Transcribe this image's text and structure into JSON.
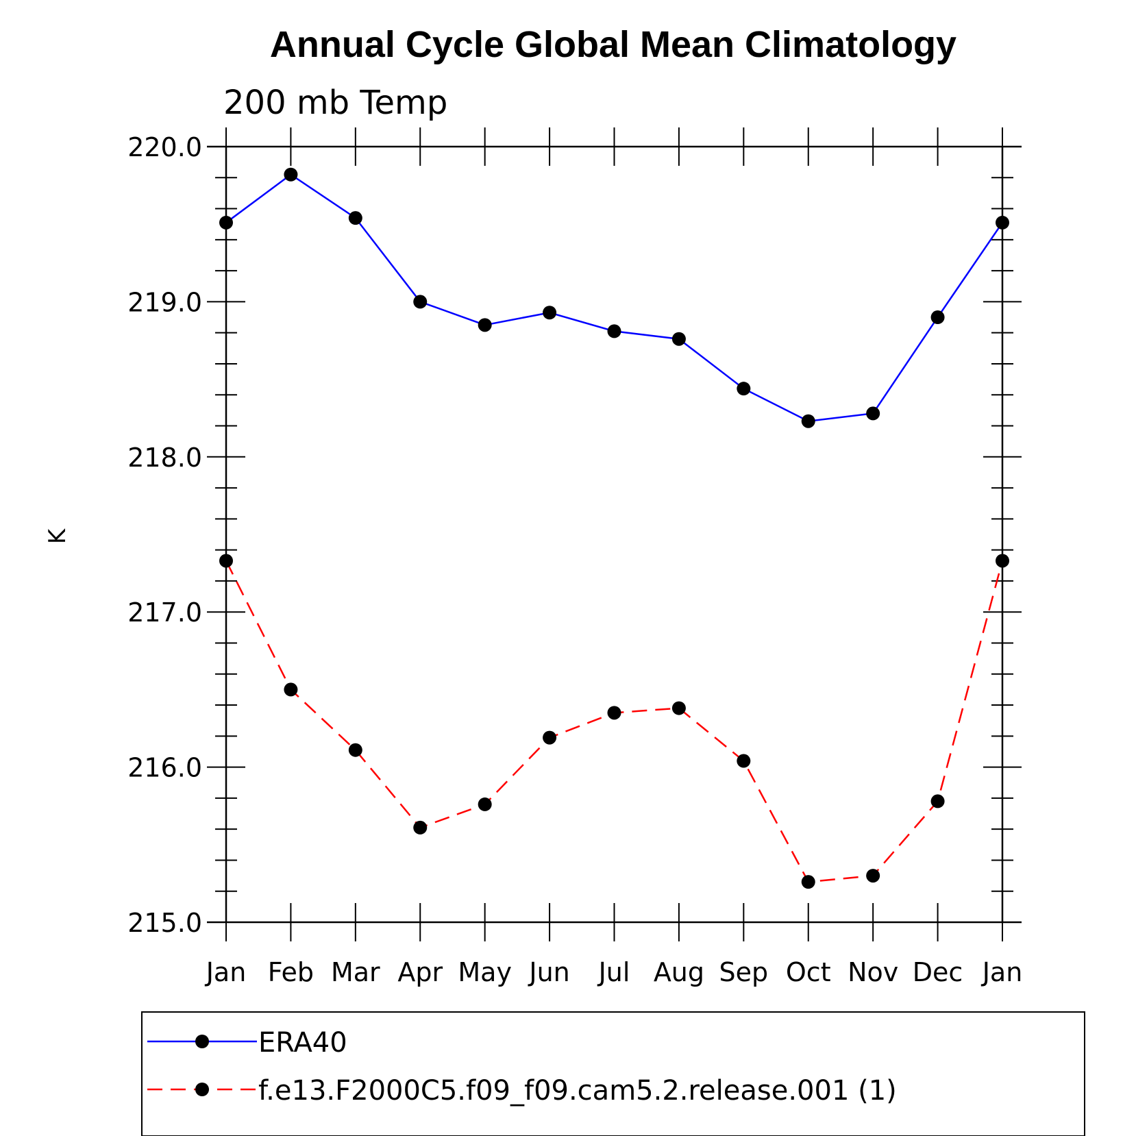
{
  "chart_data": {
    "type": "line",
    "title": "Annual Cycle Global Mean Climatology",
    "subtitle": "200 mb Temp",
    "ylabel": "K",
    "xlabel": "",
    "ylim": [
      215.0,
      220.0
    ],
    "yticks": [
      "215.0",
      "216.0",
      "217.0",
      "218.0",
      "219.0",
      "220.0"
    ],
    "categories": [
      "Jan",
      "Feb",
      "Mar",
      "Apr",
      "May",
      "Jun",
      "Jul",
      "Aug",
      "Sep",
      "Oct",
      "Nov",
      "Dec",
      "Jan"
    ],
    "grid": false,
    "legend_position": "bottom",
    "series": [
      {
        "name": "ERA40",
        "color": "#0000ff",
        "dash": "solid",
        "values": [
          219.51,
          219.82,
          219.54,
          219.0,
          218.85,
          218.93,
          218.81,
          218.76,
          218.44,
          218.23,
          218.28,
          218.9,
          219.51
        ]
      },
      {
        "name": "f.e13.F2000C5.f09_f09.cam5.2.release.001 (1)",
        "color": "#ff0000",
        "dash": "dashed",
        "values": [
          217.33,
          216.5,
          216.11,
          215.61,
          215.76,
          216.19,
          216.35,
          216.38,
          216.04,
          215.26,
          215.3,
          215.78,
          217.33
        ]
      }
    ]
  }
}
